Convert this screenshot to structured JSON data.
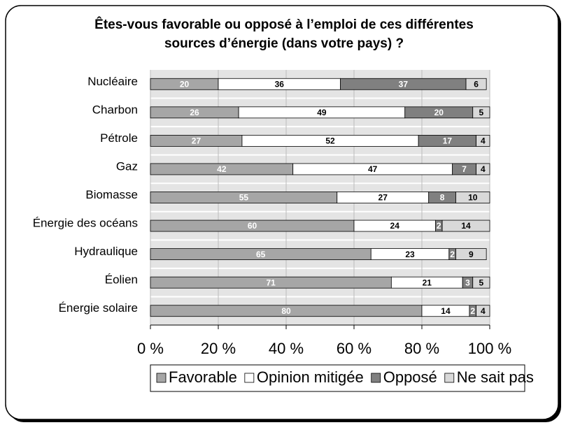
{
  "chart_data": {
    "type": "stacked_barh",
    "title": [
      "Êtes-vous favorable ou opposé à l’emploi de ces différentes",
      "sources d’énergie (dans votre pays) ?"
    ],
    "categories": [
      "Nucléaire",
      "Charbon",
      "Pétrole",
      "Gaz",
      "Biomasse",
      "Énergie des océans",
      "Hydraulique",
      "Éolien",
      "Énergie solaire"
    ],
    "series": [
      {
        "name": "Favorable",
        "color": "#a6a6a6",
        "label_color": "#ffffff",
        "values": [
          20,
          26,
          27,
          42,
          55,
          60,
          65,
          71,
          80
        ]
      },
      {
        "name": "Opinion mitigée",
        "color": "#ffffff",
        "label_color": "#000000",
        "values": [
          36,
          49,
          52,
          47,
          27,
          24,
          23,
          21,
          14
        ]
      },
      {
        "name": "Opposé",
        "color": "#808080",
        "label_color": "#ffffff",
        "values": [
          37,
          20,
          17,
          7,
          8,
          2,
          2,
          3,
          2
        ]
      },
      {
        "name": "Ne sait pas",
        "color": "#d9d9d9",
        "label_color": "#000000",
        "values": [
          6,
          5,
          4,
          4,
          10,
          14,
          9,
          5,
          4
        ]
      }
    ],
    "xlim": [
      0,
      100
    ],
    "xticks": [
      {
        "value": 0,
        "label": "0 %"
      },
      {
        "value": 20,
        "label": "20 %"
      },
      {
        "value": 40,
        "label": "40 %"
      },
      {
        "value": 60,
        "label": "60 %"
      },
      {
        "value": 80,
        "label": "80 %"
      },
      {
        "value": 100,
        "label": "100 %"
      }
    ],
    "grid": true,
    "legend": "bottom"
  }
}
